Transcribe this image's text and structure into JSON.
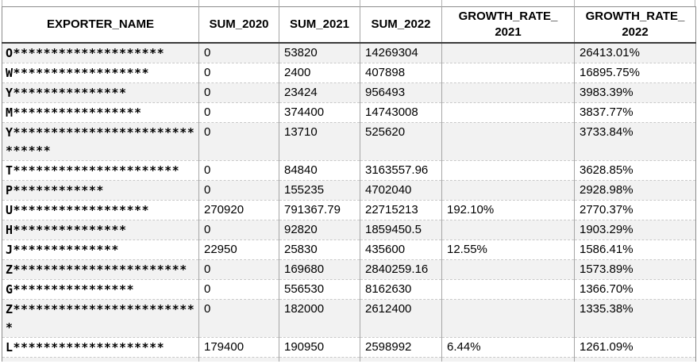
{
  "colors": {
    "background": "#ffffff",
    "row_stripe": "#f2f2f2",
    "column_grid_line": "#a6a6a6",
    "row_divider": "#c9c9c9",
    "header_underline": "#3a3a3a",
    "outer_border": "#8c8c8c",
    "text": "#000000"
  },
  "table": {
    "columns": [
      {
        "key": "exporter",
        "label": "EXPORTER_NAME"
      },
      {
        "key": "sum2020",
        "label": "SUM_2020"
      },
      {
        "key": "sum2021",
        "label": "SUM_2021"
      },
      {
        "key": "sum2022",
        "label": "SUM_2022"
      },
      {
        "key": "gr2021",
        "label": "GROWTH_RATE_\n2021"
      },
      {
        "key": "gr2022",
        "label": "GROWTH_RATE_\n2022"
      }
    ],
    "rows": [
      {
        "exporter": "O********************",
        "sum2020": "0",
        "sum2021": "53820",
        "sum2022": "14269304",
        "gr2021": "",
        "gr2022": "26413.01%"
      },
      {
        "exporter": "W******************",
        "sum2020": "0",
        "sum2021": "2400",
        "sum2022": "407898",
        "gr2021": "",
        "gr2022": "16895.75%"
      },
      {
        "exporter": "Y***************",
        "sum2020": "0",
        "sum2021": "23424",
        "sum2022": "956493",
        "gr2021": "",
        "gr2022": "3983.39%"
      },
      {
        "exporter": "M*****************",
        "sum2020": "0",
        "sum2021": "374400",
        "sum2022": "14743008",
        "gr2021": "",
        "gr2022": "3837.77%"
      },
      {
        "exporter": "Y******************************",
        "sum2020": "0",
        "sum2021": "13710",
        "sum2022": "525620",
        "gr2021": "",
        "gr2022": "3733.84%"
      },
      {
        "exporter": "T**********************",
        "sum2020": "0",
        "sum2021": "84840",
        "sum2022": "3163557.96",
        "gr2021": "",
        "gr2022": "3628.85%"
      },
      {
        "exporter": "P************",
        "sum2020": "0",
        "sum2021": "155235",
        "sum2022": "4702040",
        "gr2021": "",
        "gr2022": "2928.98%"
      },
      {
        "exporter": "U******************",
        "sum2020": "270920",
        "sum2021": "791367.79",
        "sum2022": "22715213",
        "gr2021": "192.10%",
        "gr2022": "2770.37%"
      },
      {
        "exporter": "H***************",
        "sum2020": "0",
        "sum2021": "92820",
        "sum2022": "1859450.5",
        "gr2021": "",
        "gr2022": "1903.29%"
      },
      {
        "exporter": "J**************",
        "sum2020": "22950",
        "sum2021": "25830",
        "sum2022": "435600",
        "gr2021": "12.55%",
        "gr2022": "1586.41%"
      },
      {
        "exporter": "Z***********************",
        "sum2020": "0",
        "sum2021": "169680",
        "sum2022": "2840259.16",
        "gr2021": "",
        "gr2022": "1573.89%"
      },
      {
        "exporter": "G****************",
        "sum2020": "0",
        "sum2021": "556530",
        "sum2022": "8162630",
        "gr2021": "",
        "gr2022": "1366.70%"
      },
      {
        "exporter": "Z*************************",
        "sum2020": "0",
        "sum2021": "182000",
        "sum2022": "2612400",
        "gr2021": "",
        "gr2022": "1335.38%"
      },
      {
        "exporter": "L********************",
        "sum2020": "179400",
        "sum2021": "190950",
        "sum2022": "2598992",
        "gr2021": "6.44%",
        "gr2022": "1261.09%"
      }
    ]
  }
}
